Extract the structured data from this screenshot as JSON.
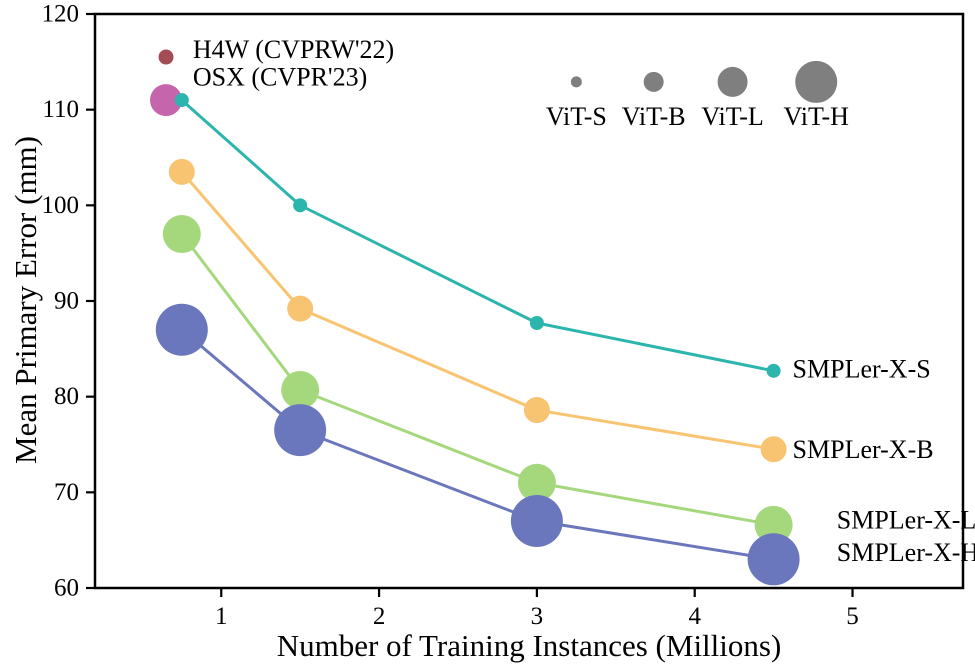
{
  "chart_data": {
    "type": "scatter",
    "title": "",
    "xlabel": "Number of Training Instances (Millions)",
    "ylabel": "Mean Primary Error (mm)",
    "xlim": [
      0.2,
      5.7
    ],
    "ylim": [
      60,
      120
    ],
    "x_ticks": [
      "1",
      "2",
      "3",
      "4",
      "5"
    ],
    "x_tick_values": [
      1,
      2,
      3,
      4,
      5
    ],
    "y_ticks": [
      "60",
      "70",
      "80",
      "90",
      "100",
      "110",
      "120"
    ],
    "y_tick_values": [
      60,
      70,
      80,
      90,
      100,
      110,
      120
    ],
    "grid": false,
    "frame_color": "#000000",
    "background": "#ffffff",
    "series": [
      {
        "name": "SMPLer-X-S",
        "color": "#2CB5AD",
        "marker_radius": 7,
        "x": [
          0.75,
          1.5,
          3,
          4.5
        ],
        "y": [
          111,
          100,
          87.7,
          82.7
        ],
        "label": {
          "text": "SMPLer-X-S",
          "x": 4.62,
          "y": 82.9
        }
      },
      {
        "name": "SMPLer-X-B",
        "color": "#F8C471",
        "marker_radius": 13,
        "x": [
          0.75,
          1.5,
          3,
          4.5
        ],
        "y": [
          103.5,
          89.2,
          78.6,
          74.5
        ],
        "label": {
          "text": "SMPLer-X-B",
          "x": 4.62,
          "y": 74.5
        }
      },
      {
        "name": "SMPLer-X-L",
        "color": "#A5D87D",
        "marker_radius": 19,
        "x": [
          0.75,
          1.5,
          3,
          4.5
        ],
        "y": [
          97,
          80.7,
          71,
          66.6
        ],
        "label": {
          "text": "SMPLer-X-L",
          "x": 4.9,
          "y": 67.1
        }
      },
      {
        "name": "SMPLer-X-H",
        "color": "#6B77BC",
        "marker_radius": 26,
        "x": [
          0.75,
          1.5,
          3,
          4.5
        ],
        "y": [
          87,
          76.5,
          67,
          63
        ],
        "label": {
          "text": "SMPLer-X-H",
          "x": 4.9,
          "y": 63.7
        }
      }
    ],
    "points": [
      {
        "name": "H4W",
        "color": "#A34C55",
        "x": 0.65,
        "y": 115.5,
        "radius": 7.5,
        "label": {
          "text": "H4W (CVPRW'22)",
          "x": 0.82,
          "y": 116.3
        }
      },
      {
        "name": "OSX",
        "color": "#C565AC",
        "x": 0.65,
        "y": 111,
        "radius": 16,
        "label": {
          "text": "OSX (CVPR'23)",
          "x": 0.82,
          "y": 113.4
        }
      }
    ],
    "size_legend": {
      "color": "#7F7F7F",
      "circle_y": 112.9,
      "label_y": 109.3,
      "items": [
        {
          "label": "ViT-S",
          "x": 3.25,
          "radius": 5.5
        },
        {
          "label": "ViT-B",
          "x": 3.74,
          "radius": 10
        },
        {
          "label": "ViT-L",
          "x": 4.24,
          "radius": 15
        },
        {
          "label": "ViT-H",
          "x": 4.77,
          "radius": 21
        }
      ]
    }
  }
}
